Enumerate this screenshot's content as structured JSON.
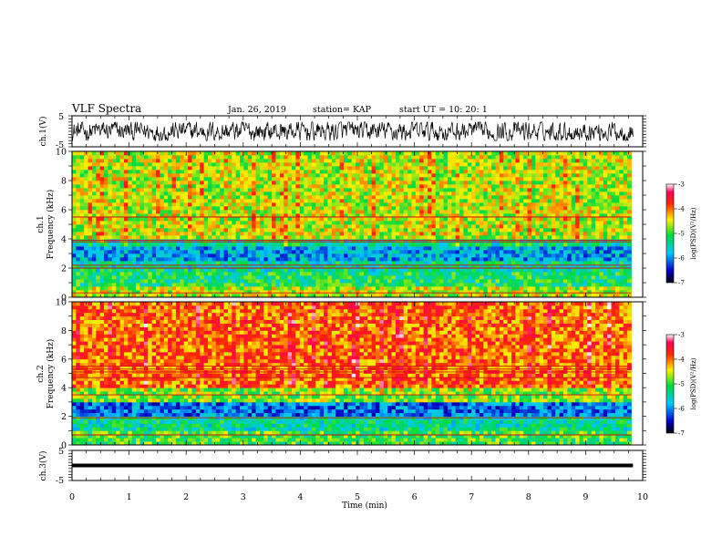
{
  "header": {
    "title": "VLF Spectra",
    "date": "Jan. 26, 2019",
    "station": "station= KAP",
    "start": "start  UT =  10: 20: 1"
  },
  "chart_data": [
    {
      "id": "ch1-waveform",
      "type": "line",
      "ylabel": "ch.1(V)",
      "ylim": [
        -5,
        5
      ],
      "yticks": [
        "5",
        "-5"
      ],
      "xlim": [
        0,
        10
      ],
      "series": [
        {
          "level_range": [
            -3,
            3
          ]
        }
      ]
    },
    {
      "id": "ch1-spectrogram",
      "type": "heatmap",
      "ylabel": "ch.1",
      "ylabel2": "Frequency (kHz)",
      "ylim": [
        0,
        10
      ],
      "yticks": [
        "0",
        "2",
        "4",
        "6",
        "8",
        "10"
      ],
      "xlim": [
        0,
        9.8
      ],
      "colorbar": {
        "label": "log(PSD)(V²/Hz)",
        "range": [
          -7,
          -3
        ],
        "ticks": [
          "-3",
          "-4",
          "-5",
          "-6",
          "-7"
        ]
      },
      "bands_khz": [
        {
          "from": 0,
          "to": 0.6,
          "level": -4.6
        },
        {
          "from": 0.6,
          "to": 1.6,
          "level": -5.2
        },
        {
          "from": 1.6,
          "to": 2.3,
          "level": -5.4
        },
        {
          "from": 2.3,
          "to": 3.3,
          "level": -5.9
        },
        {
          "from": 3.3,
          "to": 4.0,
          "level": -5.4
        },
        {
          "from": 4.0,
          "to": 10.0,
          "level": -4.6
        }
      ],
      "lines_khz": [
        0.3,
        2.0,
        2.2,
        3.8,
        3.9,
        5.5
      ]
    },
    {
      "id": "ch2-spectrogram",
      "type": "heatmap",
      "ylabel": "ch.2",
      "ylabel2": "Frequency (kHz)",
      "ylim": [
        0,
        10
      ],
      "yticks": [
        "0",
        "2",
        "4",
        "6",
        "8",
        "10"
      ],
      "xlim": [
        0,
        9.8
      ],
      "colorbar": {
        "label": "log(PSD)(V²/Hz)",
        "range": [
          -7,
          -3
        ],
        "ticks": [
          "-3",
          "-4",
          "-5",
          "-6",
          "-7"
        ]
      },
      "bands_khz": [
        {
          "from": 0,
          "to": 0.8,
          "level": -5.0
        },
        {
          "from": 0.8,
          "to": 1.8,
          "level": -5.4
        },
        {
          "from": 1.8,
          "to": 3.0,
          "level": -6.1
        },
        {
          "from": 3.0,
          "to": 4.0,
          "level": -4.8
        },
        {
          "from": 4.0,
          "to": 10.0,
          "level": -4.0
        }
      ],
      "lines_khz": [
        0.7,
        1.9,
        3.5,
        4.7,
        5.1,
        5.3,
        5.5
      ]
    },
    {
      "id": "ch3-waveform",
      "type": "line",
      "ylabel": "ch.3(V)",
      "ylim": [
        -5,
        5
      ],
      "yticks": [
        "5",
        "-5"
      ],
      "xlim": [
        0,
        10
      ],
      "series": [
        {
          "level": 0
        }
      ]
    }
  ],
  "x_axis": {
    "label": "Time (min)",
    "ticks": [
      "0",
      "1",
      "2",
      "3",
      "4",
      "5",
      "6",
      "7",
      "8",
      "9",
      "10"
    ],
    "range": [
      0,
      10
    ]
  }
}
